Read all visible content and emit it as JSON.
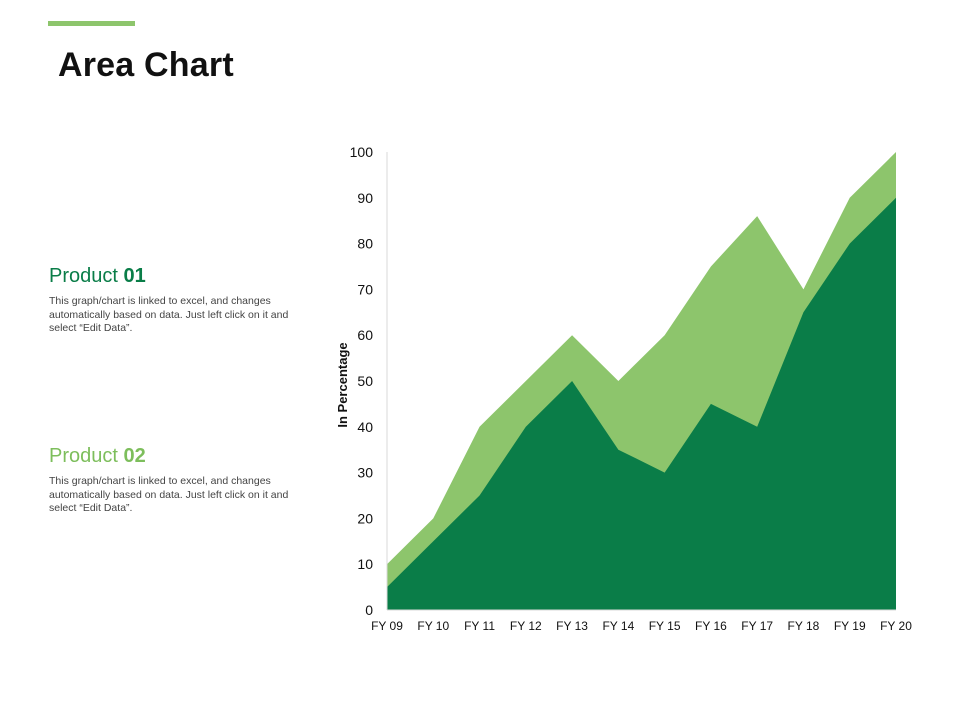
{
  "page": {
    "title": "Area Chart",
    "accent_color": "#8DC56C"
  },
  "products": [
    {
      "name": "Product",
      "number": "01",
      "color": "#0A7D48",
      "description": "This graph/chart is linked to excel, and changes automatically based on data. Just left click on it and select “Edit Data”."
    },
    {
      "name": "Product",
      "number": "02",
      "color": "#7DBE5C",
      "description": "This graph/chart is linked to excel, and changes automatically based on data. Just left click on it and select “Edit Data”."
    }
  ],
  "chart_data": {
    "type": "area",
    "title": "Area Chart",
    "xlabel": "",
    "ylabel": "In Percentage",
    "ylim": [
      0,
      100
    ],
    "yticks": [
      0,
      10,
      20,
      30,
      40,
      50,
      60,
      70,
      80,
      90,
      100
    ],
    "grid": false,
    "categories": [
      "FY 09",
      "FY 10",
      "FY 11",
      "FY 12",
      "FY 13",
      "FY 14",
      "FY 15",
      "FY 16",
      "FY 17",
      "FY 18",
      "FY 19",
      "FY 20"
    ],
    "series": [
      {
        "name": "Product 02",
        "color": "#8DC56C",
        "values": [
          10,
          20,
          40,
          50,
          60,
          50,
          60,
          75,
          86,
          70,
          90,
          100
        ]
      },
      {
        "name": "Product 01",
        "color": "#0A7D48",
        "values": [
          5,
          15,
          25,
          40,
          50,
          35,
          30,
          45,
          40,
          65,
          80,
          90
        ]
      }
    ]
  }
}
